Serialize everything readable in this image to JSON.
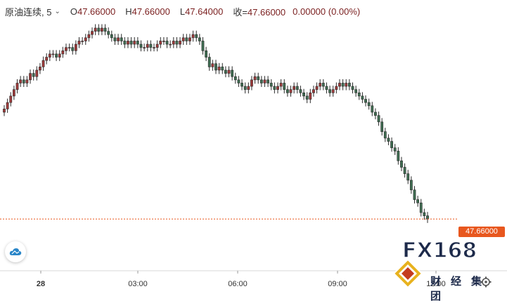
{
  "header": {
    "symbol": "原油连续, 5",
    "open_label": "O",
    "open": "47.66000",
    "high_label": "H",
    "high": "47.66000",
    "low_label": "L",
    "low": "47.64000",
    "close_label": "收=",
    "close": "47.66000",
    "change": "0.00000 (0.00%)"
  },
  "last_price": "47.66000",
  "logo": {
    "main": "FX168",
    "sub": "财经集团"
  },
  "colors": {
    "up": "#a03a3a",
    "down": "#3f6e52",
    "accent": "#e8571e",
    "text": "#333333"
  },
  "icons": {
    "menu": "chevron-down-icon",
    "cloud": "cloud-icon",
    "settings": "gear-icon"
  },
  "chart_data": {
    "type": "candlestick",
    "interval": "5",
    "x_tick_labels": [
      "28",
      "03:00",
      "06:00",
      "09:00",
      "12:00"
    ],
    "ylim": [
      47.6,
      48.25
    ],
    "last_price": 47.66,
    "grid": false,
    "series": [
      {
        "values": [
          48.0,
          48.02,
          48.04,
          48.06,
          48.08,
          48.09,
          48.08,
          48.09,
          48.11,
          48.1,
          48.12,
          48.13,
          48.15,
          48.16,
          48.17,
          48.17,
          48.16,
          48.17,
          48.18,
          48.19,
          48.19,
          48.18,
          48.2,
          48.21,
          48.21,
          48.22,
          48.23,
          48.24,
          48.25,
          48.24,
          48.25,
          48.24,
          48.23,
          48.22,
          48.21,
          48.22,
          48.21,
          48.2,
          48.21,
          48.2,
          48.21,
          48.2,
          48.19,
          48.19,
          48.2,
          48.19,
          48.19,
          48.2,
          48.21,
          48.21,
          48.2,
          48.2,
          48.21,
          48.2,
          48.21,
          48.22,
          48.21,
          48.22,
          48.23,
          48.22,
          48.21,
          48.18,
          48.16,
          48.13,
          48.14,
          48.12,
          48.13,
          48.12,
          48.11,
          48.12,
          48.1,
          48.09,
          48.08,
          48.07,
          48.06,
          48.07,
          48.09,
          48.1,
          48.09,
          48.08,
          48.09,
          48.08,
          48.07,
          48.06,
          48.07,
          48.08,
          48.06,
          48.05,
          48.06,
          48.07,
          48.06,
          48.05,
          48.04,
          48.03,
          48.05,
          48.06,
          48.07,
          48.08,
          48.07,
          48.06,
          48.05,
          48.06,
          48.07,
          48.08,
          48.07,
          48.08,
          48.07,
          48.06,
          48.05,
          48.04,
          48.03,
          48.02,
          48.01,
          47.99,
          47.98,
          47.96,
          47.93,
          47.91,
          47.9,
          47.88,
          47.87,
          47.84,
          47.82,
          47.8,
          47.78,
          47.75,
          47.72,
          47.71,
          47.68,
          47.67,
          47.66
        ]
      }
    ]
  }
}
